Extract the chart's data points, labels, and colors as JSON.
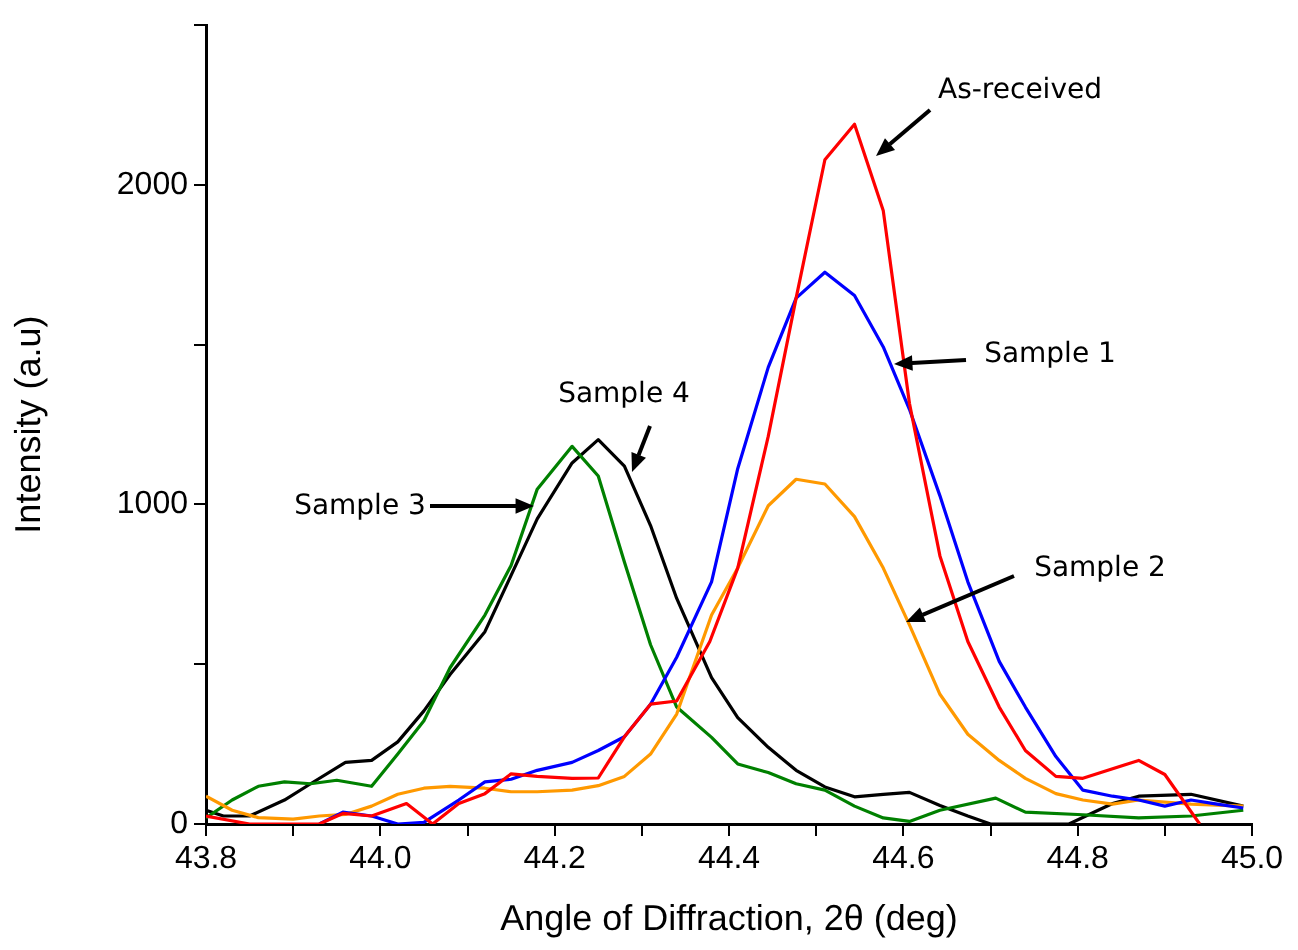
{
  "chart_data": {
    "type": "line",
    "xlabel": "Angle of Diffraction, 2θ (deg)",
    "ylabel": "Intensity (a.u)",
    "xlim": [
      43.8,
      45.0
    ],
    "xticks": [
      43.8,
      {
        "value": 43.9,
        "label": null
      },
      "44.0",
      {
        "value": 44.1,
        "label": null
      },
      44.2,
      {
        "value": 44.3,
        "label": null
      },
      44.4,
      {
        "value": 44.5,
        "label": null
      },
      44.6,
      {
        "value": 44.7,
        "label": null
      },
      44.8,
      {
        "value": 44.9,
        "label": null
      },
      "45.0"
    ],
    "ylim": [
      0,
      2500
    ],
    "yticks": [
      0,
      {
        "value": 500,
        "label": null
      },
      1000,
      {
        "value": 1500,
        "label": null
      },
      2000,
      {
        "value": 2500,
        "label": null
      }
    ],
    "grid": false,
    "legend": false,
    "marker": "none",
    "line_style": "solid",
    "series": [
      {
        "color": "#ff0000",
        "x": [
          43.8,
          43.85,
          43.93,
          43.957,
          43.99,
          44.03,
          44.06,
          44.09,
          44.12,
          44.15,
          44.18,
          44.22,
          44.25,
          44.28,
          44.31,
          44.34,
          44.378,
          44.41,
          44.445,
          44.477,
          44.51,
          44.544,
          44.577,
          44.607,
          44.642,
          44.674,
          44.71,
          44.74,
          44.775,
          44.806,
          44.87,
          44.9,
          44.94
        ],
        "values": [
          25,
          0,
          0,
          33,
          25,
          64,
          0,
          64,
          95,
          157,
          149,
          143,
          144,
          273,
          375,
          385,
          571,
          801,
          1213,
          1646,
          2079,
          2190,
          1919,
          1317,
          839,
          571,
          366,
          230,
          149,
          143,
          199,
          155,
          0
        ]
      },
      {
        "color": "#0000ff",
        "x": [
          43.93,
          43.957,
          43.99,
          44.02,
          44.05,
          44.09,
          44.12,
          44.15,
          44.18,
          44.22,
          44.25,
          44.28,
          44.31,
          44.34,
          44.38,
          44.41,
          44.445,
          44.477,
          44.51,
          44.544,
          44.577,
          44.607,
          44.642,
          44.674,
          44.71,
          44.74,
          44.775,
          44.806,
          44.84,
          44.87,
          44.9,
          44.93,
          44.96,
          44.99
        ],
        "values": [
          0,
          37,
          25,
          0,
          5,
          75,
          132,
          140,
          168,
          193,
          230,
          273,
          375,
          522,
          758,
          1112,
          1429,
          1646,
          1727,
          1654,
          1493,
          1298,
          1027,
          758,
          509,
          366,
          211,
          106,
          87,
          75,
          56,
          75,
          62,
          50
        ]
      },
      {
        "color": "#ff9900",
        "x": [
          43.8,
          43.83,
          43.86,
          43.9,
          43.93,
          43.96,
          43.99,
          44.02,
          44.05,
          44.08,
          44.12,
          44.15,
          44.18,
          44.22,
          44.25,
          44.28,
          44.31,
          44.34,
          44.38,
          44.41,
          44.445,
          44.477,
          44.51,
          44.544,
          44.577,
          44.607,
          44.642,
          44.674,
          44.71,
          44.74,
          44.775,
          44.806,
          44.84,
          44.87,
          44.93,
          44.99
        ],
        "values": [
          87,
          43,
          20,
          15,
          25,
          30,
          56,
          93,
          112,
          118,
          112,
          101,
          101,
          106,
          120,
          149,
          219,
          344,
          654,
          801,
          996,
          1079,
          1064,
          962,
          801,
          623,
          406,
          281,
          199,
          143,
          95,
          75,
          62,
          75,
          62,
          56
        ]
      },
      {
        "color": "#008000",
        "x": [
          43.8,
          43.83,
          43.86,
          43.89,
          43.92,
          43.95,
          43.99,
          44.02,
          44.05,
          44.08,
          44.12,
          44.15,
          44.18,
          44.22,
          44.25,
          44.28,
          44.31,
          44.34,
          44.38,
          44.41,
          44.445,
          44.477,
          44.51,
          44.544,
          44.577,
          44.607,
          44.642,
          44.706,
          44.74,
          44.806,
          44.87,
          44.93,
          44.99
        ],
        "values": [
          19,
          75,
          118,
          132,
          126,
          137,
          118,
          219,
          323,
          489,
          654,
          809,
          1048,
          1182,
          1089,
          820,
          561,
          366,
          271,
          188,
          161,
          126,
          106,
          56,
          19,
          8,
          43,
          81,
          37,
          29,
          19,
          25,
          43
        ]
      },
      {
        "color": "#000000",
        "x": [
          43.8,
          43.82,
          43.85,
          43.89,
          43.92,
          43.96,
          43.99,
          44.02,
          44.05,
          44.08,
          44.12,
          44.15,
          44.18,
          44.22,
          44.25,
          44.28,
          44.31,
          44.34,
          44.38,
          44.41,
          44.445,
          44.477,
          44.51,
          44.544,
          44.577,
          44.607,
          44.642,
          44.674,
          44.7,
          44.79,
          44.84,
          44.87,
          44.93,
          44.99
        ],
        "values": [
          43,
          25,
          25,
          75,
          126,
          193,
          199,
          257,
          354,
          468,
          602,
          778,
          955,
          1130,
          1203,
          1120,
          934,
          706,
          458,
          333,
          240,
          168,
          116,
          85,
          93,
          99,
          58,
          25,
          0,
          0,
          64,
          87,
          93,
          56
        ]
      }
    ],
    "annotations": [
      "As-received",
      "Sample 1",
      "Sample 2",
      "Sample 3",
      "Sample 4"
    ]
  }
}
